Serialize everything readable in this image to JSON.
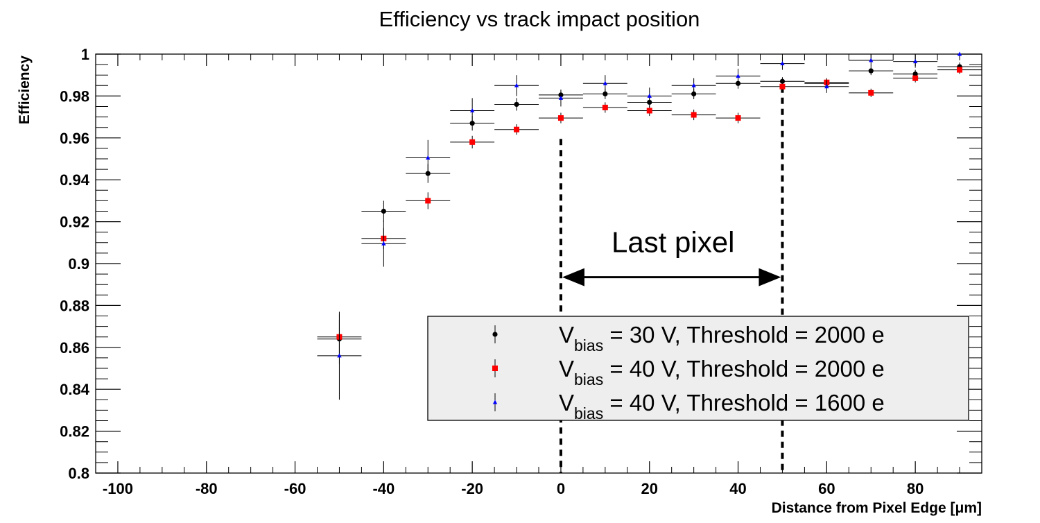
{
  "chart_data": {
    "type": "scatter",
    "title": "Efficiency vs track impact position",
    "xlabel": "Distance from Pixel Edge [μm]",
    "ylabel": "Efficiency",
    "xlim": [
      -105,
      95
    ],
    "ylim": [
      0.8,
      1.0
    ],
    "x_ticks": [
      -100,
      -80,
      -60,
      -40,
      -20,
      0,
      20,
      40,
      60,
      80
    ],
    "x_tick_labels": [
      "-100",
      "-80",
      "-60",
      "-40",
      "-20",
      "0",
      "20",
      "40",
      "60",
      "80"
    ],
    "y_ticks": [
      0.8,
      0.82,
      0.84,
      0.86,
      0.88,
      0.9,
      0.92,
      0.94,
      0.96,
      0.98,
      1.0
    ],
    "y_tick_labels": [
      "0.8",
      "0.82",
      "0.84",
      "0.86",
      "0.88",
      "0.9",
      "0.92",
      "0.94",
      "0.96",
      "0.98",
      "1"
    ],
    "x_bin_half_width": 5,
    "series": [
      {
        "name": "V_bias = 30 V, Threshold = 2000 e",
        "legend_main": "V",
        "legend_sub": "bias",
        "legend_rest": " = 30 V, Threshold = 2000 e",
        "color": "#000000",
        "marker": "circle",
        "x": [
          -50,
          -40,
          -30,
          -20,
          -10,
          0,
          10,
          20,
          30,
          40,
          50,
          60,
          70,
          80,
          90
        ],
        "y": [
          0.864,
          0.925,
          0.943,
          0.967,
          0.976,
          0.9805,
          0.981,
          0.977,
          0.981,
          0.986,
          0.987,
          0.986,
          0.992,
          0.9905,
          0.994
        ],
        "yerr": [
          0.012,
          0.005,
          0.0045,
          0.0035,
          0.003,
          0.0025,
          0.0025,
          0.0025,
          0.0025,
          0.0025,
          0.002,
          0.002,
          0.002,
          0.002,
          0.002
        ]
      },
      {
        "name": "V_bias = 40 V, Threshold = 2000 e",
        "legend_main": "V",
        "legend_sub": "bias",
        "legend_rest": " = 40 V, Threshold = 2000 e",
        "color": "#ff0000",
        "marker": "square",
        "x": [
          -50,
          -40,
          -30,
          -20,
          -10,
          0,
          10,
          20,
          30,
          40,
          50,
          60,
          70,
          80,
          90
        ],
        "y": [
          0.865,
          0.912,
          0.93,
          0.958,
          0.964,
          0.9695,
          0.9745,
          0.973,
          0.971,
          0.9695,
          0.9845,
          0.9865,
          0.9815,
          0.9885,
          0.9925
        ],
        "yerr": [
          0.008,
          0.005,
          0.004,
          0.003,
          0.0025,
          0.0025,
          0.0025,
          0.0025,
          0.0025,
          0.0025,
          0.002,
          0.002,
          0.002,
          0.002,
          0.002
        ]
      },
      {
        "name": "V_bias = 40 V, Threshold = 1600 e",
        "legend_main": "V",
        "legend_sub": "bias",
        "legend_rest": " = 40 V, Threshold = 1600 e",
        "color": "#0000ff",
        "marker": "triangle",
        "x": [
          -50,
          -40,
          -30,
          -20,
          -10,
          0,
          10,
          20,
          30,
          40,
          50,
          60,
          70,
          80,
          90
        ],
        "y": [
          0.856,
          0.9095,
          0.9505,
          0.973,
          0.985,
          0.979,
          0.986,
          0.98,
          0.985,
          0.9895,
          0.9955,
          0.9845,
          0.997,
          0.9965,
          1.0
        ],
        "yerr": [
          0.021,
          0.011,
          0.0085,
          0.006,
          0.005,
          0.004,
          0.004,
          0.004,
          0.0035,
          0.0035,
          0.003,
          0.003,
          0.003,
          0.003,
          0.002
        ]
      }
    ],
    "annotations": {
      "region_label": "Last pixel",
      "region_x": [
        0,
        50
      ]
    },
    "legend_position": "bottom-right"
  }
}
